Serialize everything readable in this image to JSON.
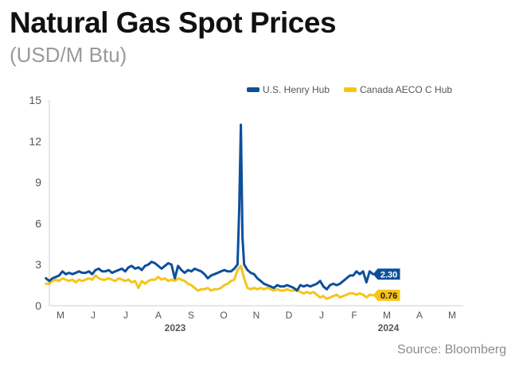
{
  "chart_data": {
    "type": "line",
    "title": "Natural Gas Spot Prices",
    "subtitle": "(USD/M Btu)",
    "source": "Source: Bloomberg",
    "ylim": [
      0,
      15
    ],
    "yticks": [
      0,
      3,
      6,
      9,
      12,
      15
    ],
    "xlabels": [
      "M",
      "J",
      "J",
      "A",
      "S",
      "O",
      "N",
      "D",
      "J",
      "F",
      "M",
      "A",
      "M"
    ],
    "years": [
      "2023",
      "2024"
    ],
    "grid": false,
    "legend_position": "top-right",
    "x_unit": "weeks from start of May 2023",
    "series": [
      {
        "name": "U.S. Henry Hub",
        "color": "#0d4f9c",
        "end_label": "2.30",
        "points": [
          [
            -2,
            2.0
          ],
          [
            -1,
            1.8
          ],
          [
            0,
            2.0
          ],
          [
            1,
            2.1
          ],
          [
            2,
            2.2
          ],
          [
            3,
            2.5
          ],
          [
            4,
            2.3
          ],
          [
            5,
            2.4
          ],
          [
            6,
            2.3
          ],
          [
            7,
            2.4
          ],
          [
            8,
            2.5
          ],
          [
            9,
            2.4
          ],
          [
            10,
            2.4
          ],
          [
            11,
            2.5
          ],
          [
            12,
            2.3
          ],
          [
            13,
            2.6
          ],
          [
            14,
            2.7
          ],
          [
            15,
            2.5
          ],
          [
            16,
            2.5
          ],
          [
            17,
            2.6
          ],
          [
            18,
            2.4
          ],
          [
            19,
            2.5
          ],
          [
            20,
            2.6
          ],
          [
            21,
            2.7
          ],
          [
            22,
            2.5
          ],
          [
            23,
            2.8
          ],
          [
            24,
            2.9
          ],
          [
            25,
            2.7
          ],
          [
            26,
            2.8
          ],
          [
            27,
            2.6
          ],
          [
            28,
            2.9
          ],
          [
            29,
            3.0
          ],
          [
            30,
            3.2
          ],
          [
            31,
            3.1
          ],
          [
            32,
            2.9
          ],
          [
            33,
            2.7
          ],
          [
            34,
            2.9
          ],
          [
            35,
            3.1
          ],
          [
            36,
            3.0
          ],
          [
            37,
            2.0
          ],
          [
            38,
            2.9
          ],
          [
            39,
            2.6
          ],
          [
            40,
            2.4
          ],
          [
            41,
            2.6
          ],
          [
            42,
            2.5
          ],
          [
            43,
            2.7
          ],
          [
            44,
            2.6
          ],
          [
            45,
            2.5
          ],
          [
            46,
            2.3
          ],
          [
            47,
            2.0
          ],
          [
            48,
            2.2
          ],
          [
            49,
            2.3
          ],
          [
            50,
            2.4
          ],
          [
            51,
            2.5
          ],
          [
            52,
            2.6
          ],
          [
            53,
            2.5
          ],
          [
            54,
            2.5
          ],
          [
            55,
            2.7
          ],
          [
            56,
            3.0
          ],
          [
            56.5,
            7.0
          ],
          [
            57,
            13.2
          ],
          [
            57.5,
            5.0
          ],
          [
            58,
            3.0
          ],
          [
            59,
            2.6
          ],
          [
            60,
            2.4
          ],
          [
            61,
            2.3
          ],
          [
            62,
            2.0
          ],
          [
            63,
            1.8
          ],
          [
            64,
            1.6
          ],
          [
            65,
            1.5
          ],
          [
            66,
            1.4
          ],
          [
            67,
            1.3
          ],
          [
            68,
            1.5
          ],
          [
            69,
            1.4
          ],
          [
            70,
            1.4
          ],
          [
            71,
            1.5
          ],
          [
            72,
            1.4
          ],
          [
            73,
            1.3
          ],
          [
            74,
            1.1
          ],
          [
            75,
            1.5
          ],
          [
            76,
            1.4
          ],
          [
            77,
            1.5
          ],
          [
            78,
            1.4
          ],
          [
            79,
            1.5
          ],
          [
            80,
            1.6
          ],
          [
            81,
            1.8
          ],
          [
            82,
            1.4
          ],
          [
            83,
            1.2
          ],
          [
            84,
            1.5
          ],
          [
            85,
            1.6
          ],
          [
            86,
            1.5
          ],
          [
            87,
            1.6
          ],
          [
            88,
            1.8
          ],
          [
            89,
            2.0
          ],
          [
            90,
            2.2
          ],
          [
            91,
            2.2
          ],
          [
            92,
            2.5
          ],
          [
            93,
            2.3
          ],
          [
            94,
            2.5
          ],
          [
            95,
            1.7
          ],
          [
            96,
            2.5
          ],
          [
            97,
            2.3
          ]
        ]
      },
      {
        "name": "Canada AECO C Hub",
        "color": "#f5c518",
        "end_label": "0.76",
        "points": [
          [
            -2,
            1.6
          ],
          [
            -1,
            1.6
          ],
          [
            0,
            1.8
          ],
          [
            1,
            1.9
          ],
          [
            2,
            1.8
          ],
          [
            3,
            2.0
          ],
          [
            4,
            1.9
          ],
          [
            5,
            1.8
          ],
          [
            6,
            1.9
          ],
          [
            7,
            1.7
          ],
          [
            8,
            1.9
          ],
          [
            9,
            1.8
          ],
          [
            10,
            1.9
          ],
          [
            11,
            2.0
          ],
          [
            12,
            1.9
          ],
          [
            13,
            2.2
          ],
          [
            14,
            2.0
          ],
          [
            15,
            1.9
          ],
          [
            16,
            1.9
          ],
          [
            17,
            2.0
          ],
          [
            18,
            1.9
          ],
          [
            19,
            1.8
          ],
          [
            20,
            2.0
          ],
          [
            21,
            1.9
          ],
          [
            22,
            1.8
          ],
          [
            23,
            1.9
          ],
          [
            24,
            1.7
          ],
          [
            25,
            1.8
          ],
          [
            26,
            1.3
          ],
          [
            27,
            1.8
          ],
          [
            28,
            1.6
          ],
          [
            29,
            1.8
          ],
          [
            30,
            1.9
          ],
          [
            31,
            1.9
          ],
          [
            32,
            2.1
          ],
          [
            33,
            1.9
          ],
          [
            34,
            2.0
          ],
          [
            35,
            1.8
          ],
          [
            36,
            1.9
          ],
          [
            37,
            1.8
          ],
          [
            38,
            2.0
          ],
          [
            39,
            1.9
          ],
          [
            40,
            1.8
          ],
          [
            41,
            1.6
          ],
          [
            42,
            1.5
          ],
          [
            43,
            1.3
          ],
          [
            44,
            1.1
          ],
          [
            45,
            1.2
          ],
          [
            46,
            1.2
          ],
          [
            47,
            1.3
          ],
          [
            48,
            1.1
          ],
          [
            49,
            1.2
          ],
          [
            50,
            1.2
          ],
          [
            51,
            1.3
          ],
          [
            52,
            1.5
          ],
          [
            53,
            1.6
          ],
          [
            54,
            1.8
          ],
          [
            55,
            1.9
          ],
          [
            56,
            2.6
          ],
          [
            57,
            2.9
          ],
          [
            58,
            2.0
          ],
          [
            59,
            1.3
          ],
          [
            60,
            1.2
          ],
          [
            61,
            1.3
          ],
          [
            62,
            1.2
          ],
          [
            63,
            1.3
          ],
          [
            64,
            1.2
          ],
          [
            65,
            1.3
          ],
          [
            66,
            1.2
          ],
          [
            67,
            1.1
          ],
          [
            68,
            1.2
          ],
          [
            69,
            1.1
          ],
          [
            70,
            1.1
          ],
          [
            71,
            1.2
          ],
          [
            72,
            1.1
          ],
          [
            73,
            1.1
          ],
          [
            74,
            1.2
          ],
          [
            75,
            1.0
          ],
          [
            76,
            0.9
          ],
          [
            77,
            1.0
          ],
          [
            78,
            0.9
          ],
          [
            79,
            1.0
          ],
          [
            80,
            0.8
          ],
          [
            81,
            0.6
          ],
          [
            82,
            0.7
          ],
          [
            83,
            0.5
          ],
          [
            84,
            0.6
          ],
          [
            85,
            0.7
          ],
          [
            86,
            0.8
          ],
          [
            87,
            0.6
          ],
          [
            88,
            0.7
          ],
          [
            89,
            0.8
          ],
          [
            90,
            0.9
          ],
          [
            91,
            0.9
          ],
          [
            92,
            0.8
          ],
          [
            93,
            0.9
          ],
          [
            94,
            0.8
          ],
          [
            95,
            0.6
          ],
          [
            96,
            0.8
          ],
          [
            97,
            0.76
          ]
        ]
      }
    ]
  }
}
